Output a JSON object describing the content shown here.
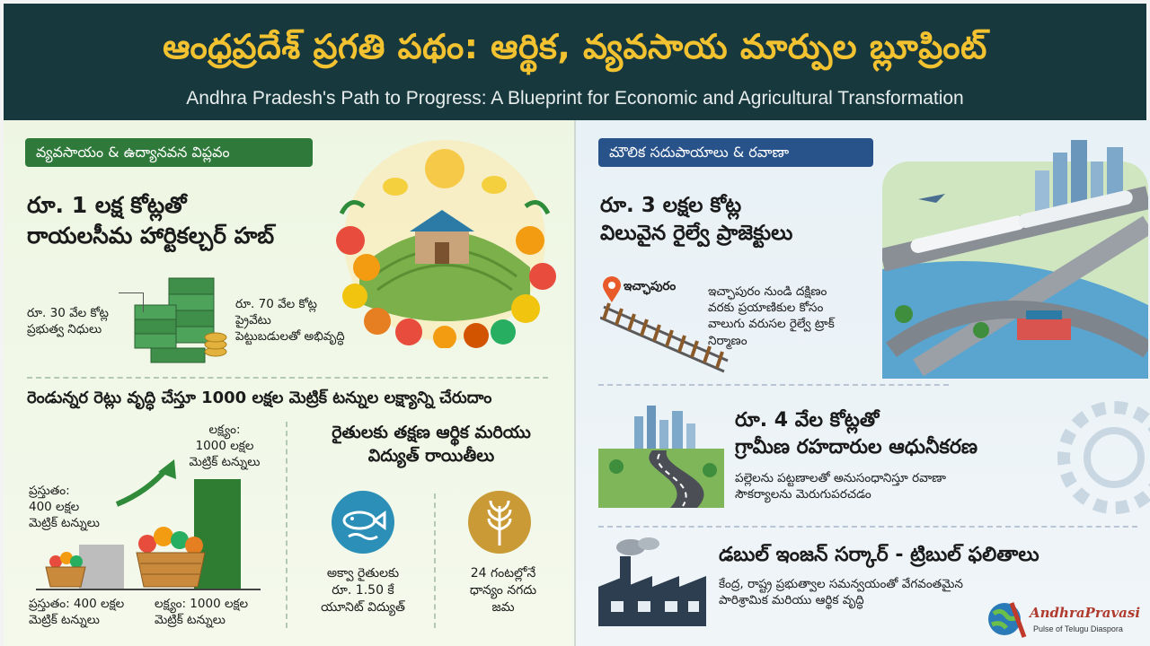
{
  "header": {
    "title_te": "ఆంధ్రప్రదేశ్ ప్రగతి పథం: ఆర్థిక, వ్యవసాయ మార్పుల బ్లూప్రింట్",
    "title_en": "Andhra Pradesh's Path to Progress: A Blueprint for Economic and Agricultural Transformation"
  },
  "left": {
    "badge": "వ్యవసాయం & ఉద్యానవన విప్లవం",
    "hub_heading": [
      "రూ. 1 లక్ష కోట్లతో",
      "రాయలసీమ హార్టికల్చర్ హబ్"
    ],
    "govt_funds": [
      "రూ. 30 వేల కోట్ల",
      "ప్రభుత్వ నిధులు"
    ],
    "private_funds": [
      "రూ. 70 వేల కోట్ల",
      "ప్రైవేటు",
      "పెట్టుబడులతో అభివృద్ధి"
    ],
    "target_heading": "రెండున్నర రెట్లు వృద్ధి చేస్తూ 1000 లక్షల మెట్రిక్ టన్నుల లక్ష్యాన్ని చేరుదాం",
    "current_note": [
      "ప్రస్తుతం:",
      "400 లక్షల",
      "మెట్రిక్ టన్నులు"
    ],
    "target_note": [
      "లక్ష్యం:",
      "1000 లక్షల",
      "మెట్రిక్ టన్నులు"
    ],
    "current_label": [
      "ప్రస్తుతం: 400 లక్షల",
      "మెట్రిక్ టన్నులు"
    ],
    "target_label": [
      "లక్ష్యం: 1000 లక్షల",
      "మెట్రిక్ టన్నులు"
    ],
    "current_value": 400,
    "target_value": 1000,
    "farmer_heading": [
      "రైతులకు తక్షణ ఆర్థిక మరియు",
      "విద్యుత్ రాయితీలు"
    ],
    "aqua": [
      "అక్వా రైతులకు",
      "రూ. 1.50 కే",
      "యూనిట్ విద్యుత్"
    ],
    "grain": [
      "24 గంటల్లోనే",
      "ధాన్యం నగదు",
      "జమ"
    ]
  },
  "right": {
    "badge": "మౌలిక సదుపాయాలు & రవాణా",
    "rail_heading": [
      "రూ. 3 లక్షల కోట్ల",
      "విలువైన రైల్వే ప్రాజెక్టులు"
    ],
    "place": "ఇచ్ఛాపురం",
    "rail_desc": [
      "ఇచ్ఛాపురం నుండి దక్షిణం",
      "వరకు ప్రయాణికుల కోసం",
      "వాలుగు వరుసల రైల్వే ట్రాక్",
      "నిర్మాణం"
    ],
    "road_heading": [
      "రూ. 4 వేల కోట్లతో",
      "గ్రామీణ రహదారుల ఆధునీకరణ"
    ],
    "road_desc": [
      "పల్లెలను పట్టణాలతో అనుసంధానిస్తూ రవాణా",
      "సౌకర్యాలను మెరుగుపరచడం"
    ],
    "engine_heading": "డబుల్ ఇంజన్ సర్కార్ - ట్రిబుల్ ఫలితాలు",
    "engine_desc": [
      "కేంద్ర, రాష్ట్ర ప్రభుత్వాల సమన్వయంతో వేగవంతమైన",
      "పారిశ్రామిక మరియు ఆర్థిక వృద్ధి"
    ]
  },
  "logo": {
    "name": "AndhraPravasi",
    "tagline": "Pulse of Telugu Diaspora"
  },
  "colors": {
    "header_bg": "#17383d",
    "title_gold": "#f2c230",
    "agri_green": "#2f7a3a",
    "infra_blue": "#27528a"
  }
}
